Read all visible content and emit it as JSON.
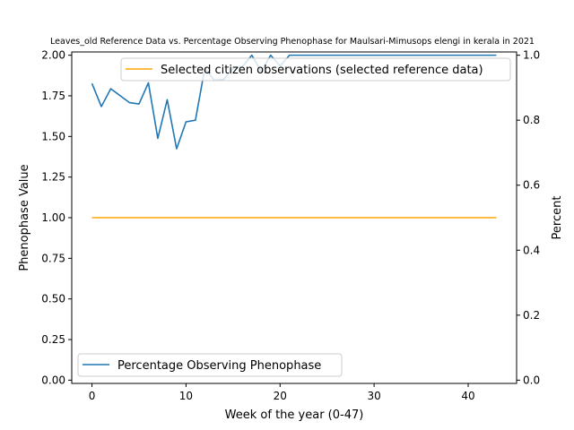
{
  "chart_data": {
    "type": "line",
    "title": "Leaves_old Reference Data vs. Percentage Observing Phenophase for Maulsari-Mimusops elengi in kerala in 2021",
    "xlabel": "Week of the year (0-47)",
    "ylabel_left": "Phenophase Value",
    "ylabel_right": "Percent",
    "xlim": [
      -2.15,
      45.15
    ],
    "ylim_left": [
      -0.02,
      2.02
    ],
    "ylim_right": [
      -0.01,
      1.01
    ],
    "x_ticks": [
      0,
      10,
      20,
      30,
      40
    ],
    "y_left_ticks": [
      "0.00",
      "0.25",
      "0.50",
      "0.75",
      "1.00",
      "1.25",
      "1.50",
      "1.75",
      "2.00"
    ],
    "y_right_ticks": [
      "0.0",
      "0.2",
      "0.4",
      "0.6",
      "0.8",
      "1.0"
    ],
    "series": [
      {
        "name": "Selected citizen observations (selected reference data)",
        "axis": "left",
        "color": "#ffa500",
        "x": [
          0,
          43
        ],
        "y": [
          1.0,
          1.0
        ]
      },
      {
        "name": "Percentage Observing Phenophase",
        "axis": "right",
        "color": "#1f77b4",
        "x": [
          0,
          1,
          2,
          4,
          5,
          6,
          7,
          8,
          9,
          10,
          11,
          12,
          13,
          14,
          15,
          16,
          17,
          18,
          19,
          20,
          21,
          22,
          23,
          24,
          25,
          26,
          27,
          28,
          29,
          30,
          31,
          32,
          33,
          34,
          35,
          36,
          37,
          38,
          39,
          40,
          41,
          42,
          43
        ],
        "y": [
          0.913,
          0.842,
          0.897,
          0.854,
          0.85,
          0.915,
          0.744,
          0.863,
          0.712,
          0.795,
          0.8,
          0.96,
          0.923,
          0.925,
          0.96,
          0.965,
          1.0,
          0.95,
          1.0,
          0.967,
          1.0,
          1.0,
          1.0,
          1.0,
          1.0,
          1.0,
          1.0,
          1.0,
          1.0,
          1.0,
          1.0,
          1.0,
          1.0,
          1.0,
          1.0,
          1.0,
          1.0,
          1.0,
          1.0,
          1.0,
          1.0,
          1.0,
          1.0
        ]
      }
    ],
    "legend_upper": "top-right",
    "legend_lower": "bottom-left",
    "grid": false
  }
}
